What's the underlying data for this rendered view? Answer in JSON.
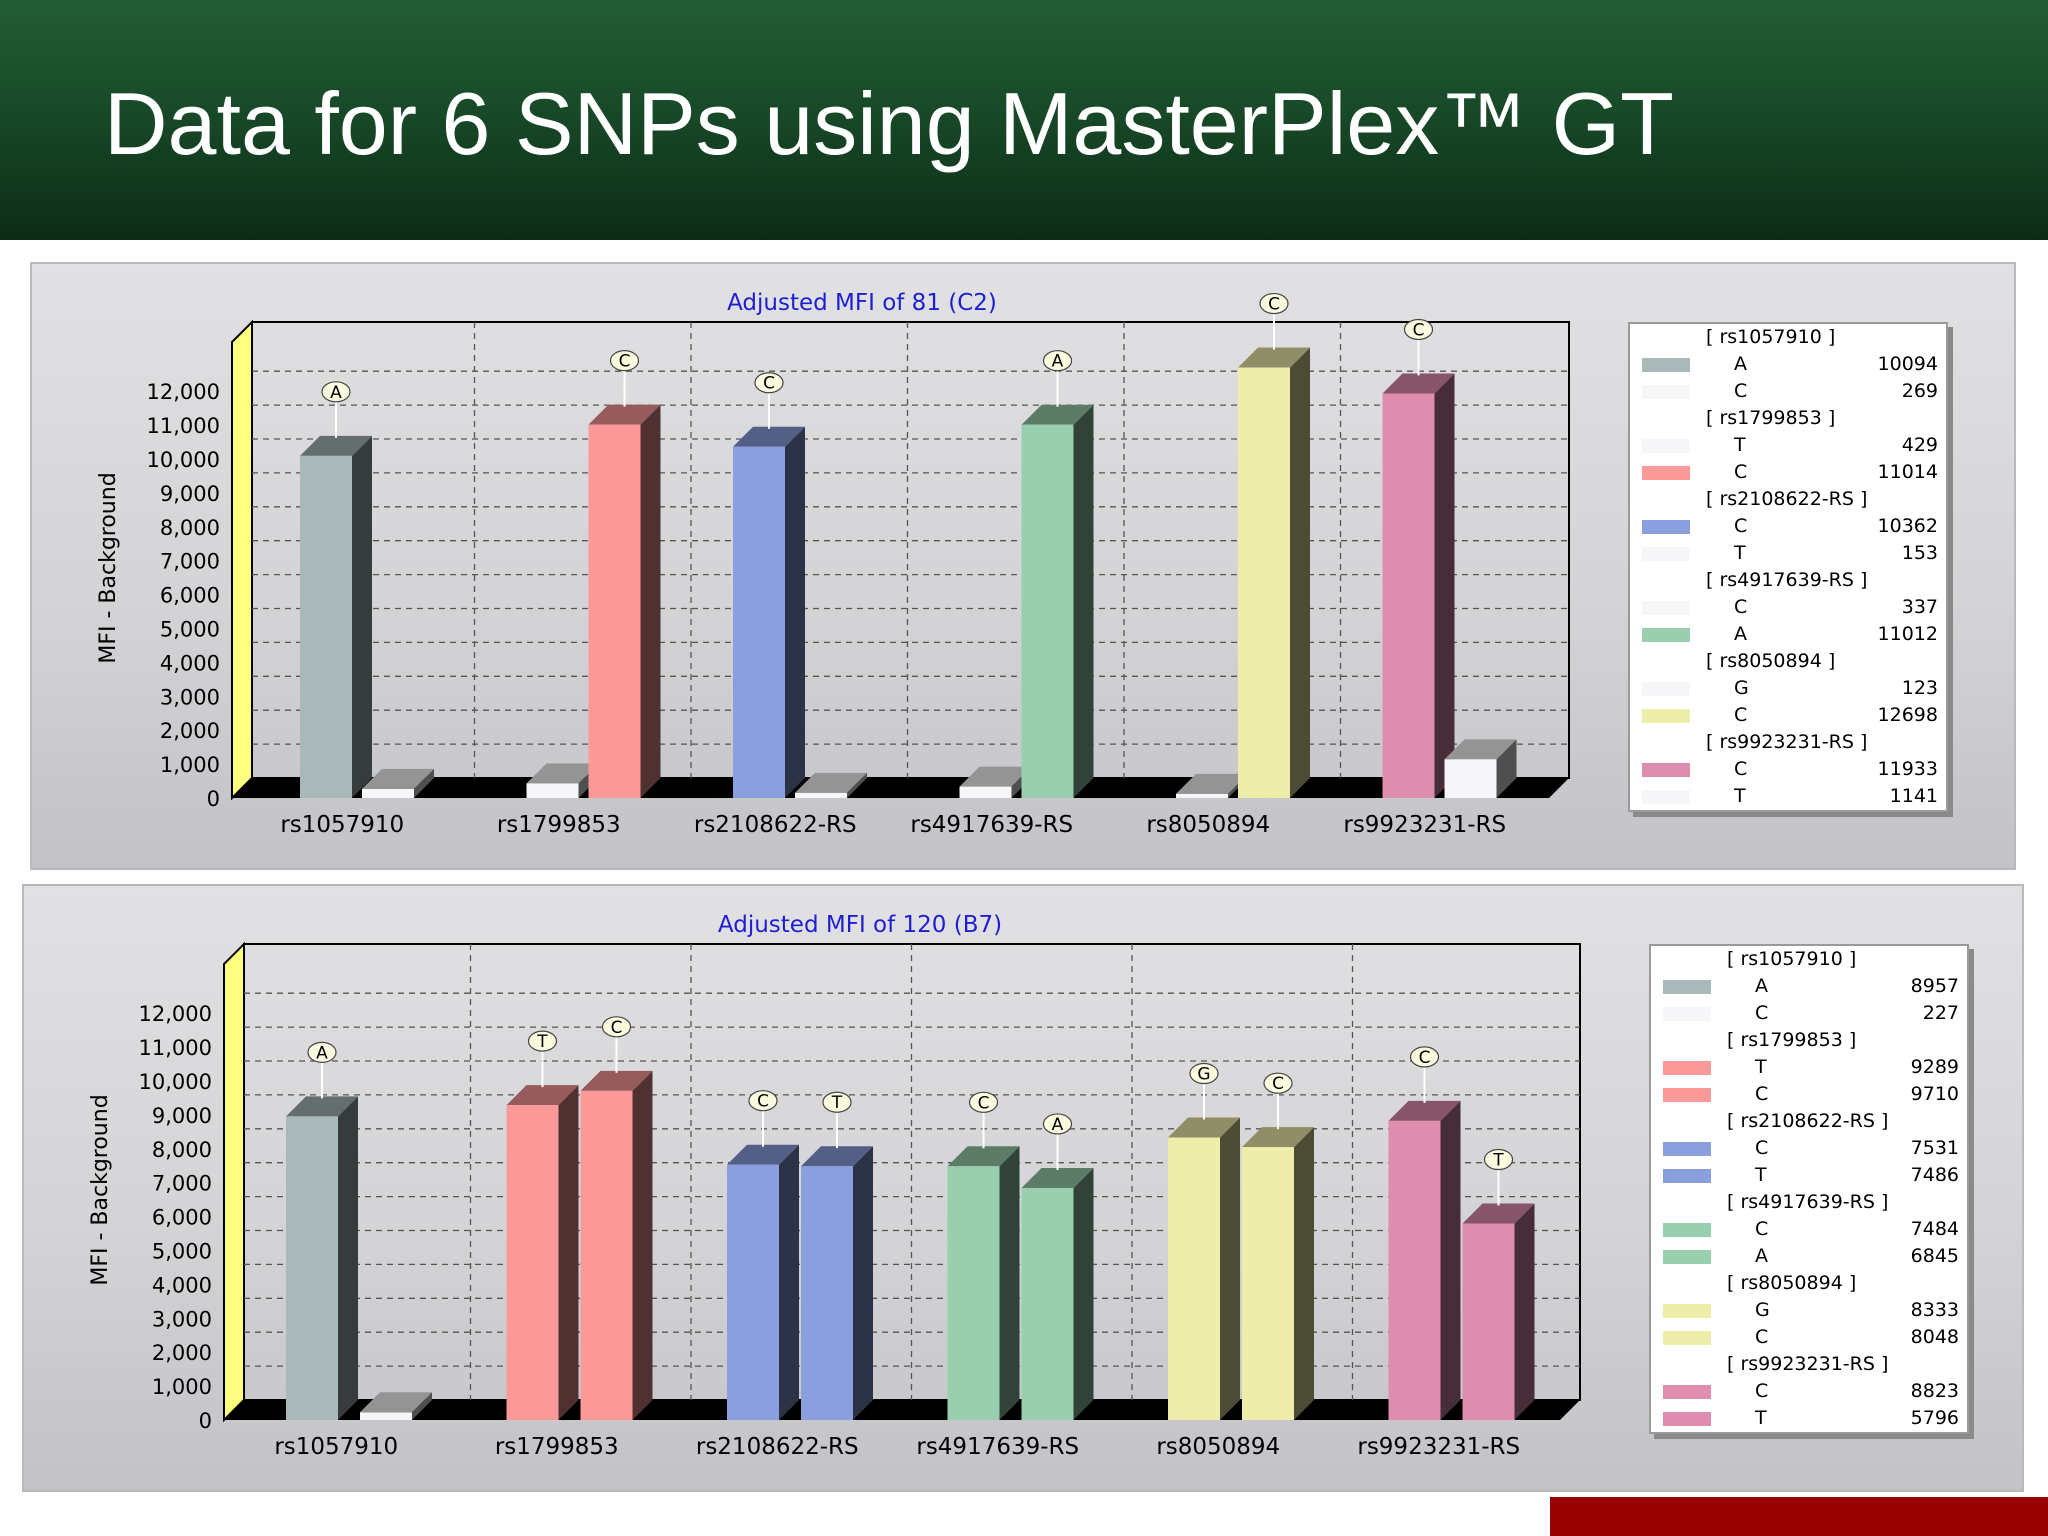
{
  "slide": {
    "title": "Data for 6 SNPs using MasterPlex™ GT"
  },
  "chart_data": [
    {
      "type": "bar",
      "title": "Adjusted MFI of 81 (C2)",
      "xlabel": "",
      "ylabel": "MFI - Background",
      "ylim": [
        0,
        13000
      ],
      "yticks": [
        "0",
        "1,000",
        "2,000",
        "3,000",
        "4,000",
        "5,000",
        "6,000",
        "7,000",
        "8,000",
        "9,000",
        "10,000",
        "11,000",
        "12,000"
      ],
      "categories": [
        "rs1057910",
        "rs1799853",
        "rs2108622-RS",
        "rs4917639-RS",
        "rs8050894",
        "rs9923231-RS"
      ],
      "groups": [
        {
          "snp": "[ rs1057910 ]",
          "bars": [
            {
              "allele": "A",
              "value": 10094,
              "color": "#a9b8b9",
              "call": "A"
            },
            {
              "allele": "C",
              "value": 269,
              "color": "#f6f6f8",
              "call": ""
            }
          ]
        },
        {
          "snp": "[ rs1799853 ]",
          "bars": [
            {
              "allele": "T",
              "value": 429,
              "color": "#f6f6f8",
              "call": ""
            },
            {
              "allele": "C",
              "value": 11014,
              "color": "#fb9898",
              "call": "C"
            }
          ]
        },
        {
          "snp": "[ rs2108622-RS ]",
          "bars": [
            {
              "allele": "C",
              "value": 10362,
              "color": "#8b9fdf",
              "call": "C"
            },
            {
              "allele": "T",
              "value": 153,
              "color": "#f6f6f8",
              "call": ""
            }
          ]
        },
        {
          "snp": "[ rs4917639-RS ]",
          "bars": [
            {
              "allele": "C",
              "value": 337,
              "color": "#f6f6f8",
              "call": ""
            },
            {
              "allele": "A",
              "value": 11012,
              "color": "#99cfae",
              "call": "A"
            }
          ]
        },
        {
          "snp": "[ rs8050894 ]",
          "bars": [
            {
              "allele": "G",
              "value": 123,
              "color": "#f6f6f8",
              "call": ""
            },
            {
              "allele": "C",
              "value": 12698,
              "color": "#efedaa",
              "call": "C"
            }
          ]
        },
        {
          "snp": "[ rs9923231-RS ]",
          "bars": [
            {
              "allele": "C",
              "value": 11933,
              "color": "#df8daf",
              "call": "C"
            },
            {
              "allele": "T",
              "value": 1141,
              "color": "#f6f6f8",
              "call": ""
            }
          ]
        }
      ]
    },
    {
      "type": "bar",
      "title": "Adjusted MFI of 120 (B7)",
      "xlabel": "",
      "ylabel": "MFI - Background",
      "ylim": [
        0,
        13000
      ],
      "yticks": [
        "0",
        "1,000",
        "2,000",
        "3,000",
        "4,000",
        "5,000",
        "6,000",
        "7,000",
        "8,000",
        "9,000",
        "10,000",
        "11,000",
        "12,000"
      ],
      "categories": [
        "rs1057910",
        "rs1799853",
        "rs2108622-RS",
        "rs4917639-RS",
        "rs8050894",
        "rs9923231-RS"
      ],
      "groups": [
        {
          "snp": "[ rs1057910 ]",
          "bars": [
            {
              "allele": "A",
              "value": 8957,
              "color": "#a9b8b9",
              "call": "A"
            },
            {
              "allele": "C",
              "value": 227,
              "color": "#f6f6f8",
              "call": ""
            }
          ]
        },
        {
          "snp": "[ rs1799853 ]",
          "bars": [
            {
              "allele": "T",
              "value": 9289,
              "color": "#fb9898",
              "call": "T"
            },
            {
              "allele": "C",
              "value": 9710,
              "color": "#fb9898",
              "call": "C"
            }
          ]
        },
        {
          "snp": "[ rs2108622-RS ]",
          "bars": [
            {
              "allele": "C",
              "value": 7531,
              "color": "#8b9fdf",
              "call": "C"
            },
            {
              "allele": "T",
              "value": 7486,
              "color": "#8b9fdf",
              "call": "T"
            }
          ]
        },
        {
          "snp": "[ rs4917639-RS ]",
          "bars": [
            {
              "allele": "C",
              "value": 7484,
              "color": "#99cfae",
              "call": "C"
            },
            {
              "allele": "A",
              "value": 6845,
              "color": "#99cfae",
              "call": "A"
            }
          ]
        },
        {
          "snp": "[ rs8050894 ]",
          "bars": [
            {
              "allele": "G",
              "value": 8333,
              "color": "#efedaa",
              "call": "G"
            },
            {
              "allele": "C",
              "value": 8048,
              "color": "#efedaa",
              "call": "C"
            }
          ]
        },
        {
          "snp": "[ rs9923231-RS ]",
          "bars": [
            {
              "allele": "C",
              "value": 8823,
              "color": "#df8daf",
              "call": "C"
            },
            {
              "allele": "T",
              "value": 5796,
              "color": "#df8daf",
              "call": "T"
            }
          ]
        }
      ]
    }
  ]
}
